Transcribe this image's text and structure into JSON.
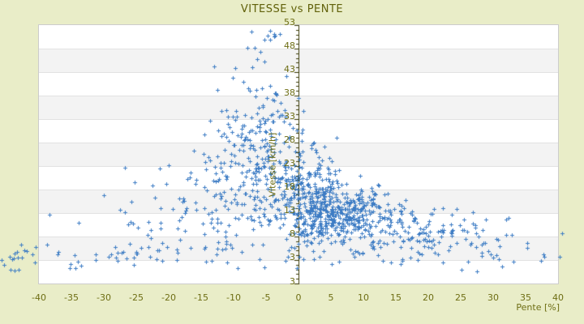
{
  "title": "VITESSE vs PENTE",
  "colors": {
    "page_background": "#e9edc8",
    "plot_background": "#ffffff",
    "band_gray": "#f3f3f3",
    "band_line": "#e2e2e2",
    "plot_border": "#cccccc",
    "text_olive": "#6e6e14",
    "title_olive": "#61610a",
    "axis_line": "#3c3c08",
    "marker_blue": "#3d7cc4"
  },
  "chart_data": {
    "type": "scatter",
    "title": "VITESSE vs PENTE",
    "xlabel": "Pente [%]",
    "ylabel": "Vitesse [km/h]",
    "xlim": [
      -40,
      40
    ],
    "ylim": [
      -2,
      53
    ],
    "x_ticks": [
      -40,
      -35,
      -30,
      -25,
      -20,
      -15,
      -10,
      -5,
      0,
      5,
      10,
      15,
      20,
      25,
      30,
      35,
      40
    ],
    "y_ticks": [
      53,
      48,
      43,
      38,
      33,
      28,
      23,
      18,
      13,
      8,
      3
    ],
    "y_axis_min_label": "3",
    "grid": "alternating horizontal bands, 5 units per band, y-axis drawn vertically at x=0 with minor ticks every 1 unit",
    "legend": "none",
    "marker": "plus",
    "n_points_estimate": 1219,
    "summary": "Speed vs slope cloud: dense core at slope 0-12% / speed 8-18 km/h; negative slopes (descents) reach speeds up to ~53 km/h around -5%; sparse low-speed tail (3-10 km/h) extends to +/-40% slope with a few points spilling outside the plot edges.",
    "series": [
      {
        "name": "vitesse-vs-pente-points",
        "synthesis": {
          "seed": 1337,
          "clusters": [
            {
              "name": "core-right",
              "n": 380,
              "x": {
                "dist": "normal",
                "mean": 6.5,
                "sd": 3.8,
                "min": -2,
                "max": 20
              },
              "y": {
                "dist": "normal",
                "mean": 12.5,
                "sd": 3.2,
                "min": 3,
                "max": 26
              }
            },
            {
              "name": "core-axis",
              "n": 255,
              "x": {
                "dist": "normal",
                "mean": 0.8,
                "sd": 3.0,
                "min": -8,
                "max": 10
              },
              "y": {
                "dist": "normal",
                "mean": 17,
                "sd": 5.5,
                "min": 4,
                "max": 36
              }
            },
            {
              "name": "left-cloud",
              "n": 185,
              "x": {
                "dist": "normal",
                "mean": -7.5,
                "sd": 4.3,
                "min": -25,
                "max": 1
              },
              "y": {
                "dist": "normal",
                "mean": 23,
                "sd": 6.5,
                "min": 5,
                "max": 44
              }
            },
            {
              "name": "left-high",
              "n": 55,
              "x": {
                "dist": "normal",
                "mean": -5,
                "sd": 2.7,
                "min": -15,
                "max": 0
              },
              "y": {
                "dist": "normal",
                "mean": 34,
                "sd": 5,
                "min": 26,
                "max": 47
              }
            },
            {
              "name": "top-sparse",
              "n": 13,
              "x": {
                "dist": "normal",
                "mean": -5.5,
                "sd": 2.3,
                "min": -10,
                "max": -1
              },
              "y": {
                "dist": "normal",
                "mean": 48.5,
                "sd": 2.6,
                "min": 44,
                "max": 53
              }
            },
            {
              "name": "left-wide",
              "n": 85,
              "x": {
                "dist": "normal",
                "mean": -17,
                "sd": 7,
                "min": -39,
                "max": -5
              },
              "y": {
                "dist": "normal",
                "mean": 11,
                "sd": 5,
                "min": 3,
                "max": 25
              }
            },
            {
              "name": "bottom-band",
              "n": 95,
              "x": {
                "dist": "uniform",
                "min": -45,
                "max": 41
              },
              "y": {
                "dist": "normal",
                "mean": 3.5,
                "sd": 1.6,
                "min": 0.5,
                "max": 7
              }
            },
            {
              "name": "right-tail",
              "n": 120,
              "x": {
                "dist": "normal",
                "mean": 19,
                "sd": 8.5,
                "min": 9,
                "max": 41
              },
              "y": {
                "dist": "normal",
                "mean": 8.8,
                "sd": 2.3,
                "min": 3,
                "max": 15
              }
            },
            {
              "name": "right-mid",
              "n": 25,
              "x": {
                "dist": "normal",
                "mean": 14,
                "sd": 4,
                "min": 8,
                "max": 24
              },
              "y": {
                "dist": "normal",
                "mean": 13.5,
                "sd": 1.8,
                "min": 11,
                "max": 18
              }
            },
            {
              "name": "outliers-left",
              "n": 6,
              "x": {
                "dist": "uniform",
                "min": -46,
                "max": -40.5
              },
              "y": {
                "dist": "uniform",
                "min": 0.8,
                "max": 4
              }
            }
          ]
        }
      }
    ]
  }
}
